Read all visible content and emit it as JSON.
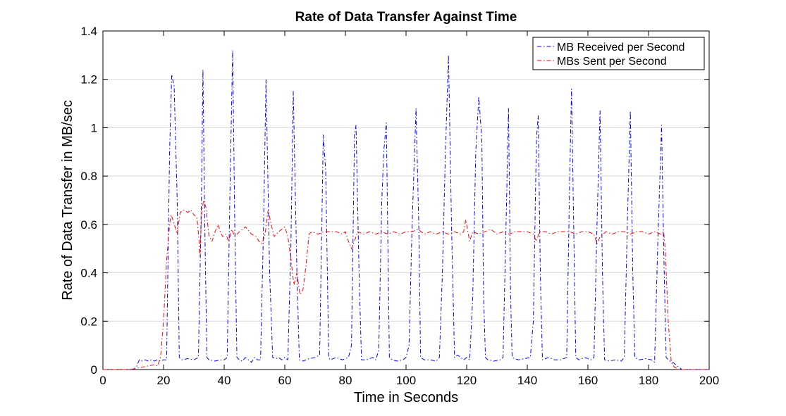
{
  "chart_data": {
    "type": "line",
    "title": "Rate of Data Transfer Against Time",
    "xlabel": "Time in Seconds",
    "ylabel": "Rate of Data Transfer in MB/sec",
    "xlim": [
      0,
      200
    ],
    "ylim": [
      0,
      1.4
    ],
    "xticks": [
      0,
      20,
      40,
      60,
      80,
      100,
      120,
      140,
      160,
      180,
      200
    ],
    "yticks": [
      0,
      0.2,
      0.4,
      0.6,
      0.8,
      1,
      1.2,
      1.4
    ],
    "grid": "horizontal",
    "legend_position": "top-right",
    "series": [
      {
        "name": "MB Received per Second",
        "color": "#0000ff",
        "line_style": "dash-dot",
        "points": [
          [
            0,
            0
          ],
          [
            10,
            0
          ],
          [
            11,
            0.01
          ],
          [
            12,
            0.04
          ],
          [
            13,
            0.035
          ],
          [
            14,
            0.04
          ],
          [
            15,
            0.035
          ],
          [
            16,
            0.04
          ],
          [
            17,
            0.035
          ],
          [
            18,
            0.04
          ],
          [
            19,
            0.035
          ],
          [
            20,
            0.04
          ],
          [
            21,
            0.04
          ],
          [
            22,
            0.9
          ],
          [
            22.7,
            1.22
          ],
          [
            23.5,
            1.17
          ],
          [
            24.5,
            0.7
          ],
          [
            25.2,
            0.05
          ],
          [
            26,
            0.04
          ],
          [
            28,
            0.045
          ],
          [
            30,
            0.04
          ],
          [
            31.5,
            0.05
          ],
          [
            32.5,
            0.7
          ],
          [
            33,
            1.24
          ],
          [
            33.6,
            0.6
          ],
          [
            34.3,
            0.05
          ],
          [
            35,
            0.04
          ],
          [
            37,
            0.035
          ],
          [
            39,
            0.04
          ],
          [
            40,
            0.04
          ],
          [
            41,
            0.05
          ],
          [
            42,
            0.8
          ],
          [
            42.8,
            1.32
          ],
          [
            43.5,
            0.6
          ],
          [
            44.2,
            0.05
          ],
          [
            45,
            0.04
          ],
          [
            46,
            0.035
          ],
          [
            47,
            0.05
          ],
          [
            48,
            0.04
          ],
          [
            49,
            0.03
          ],
          [
            50,
            0.05
          ],
          [
            51,
            0.04
          ],
          [
            52,
            0.04
          ],
          [
            53,
            0.6
          ],
          [
            53.8,
            1.2
          ],
          [
            55,
            0.4
          ],
          [
            56,
            0.05
          ],
          [
            57,
            0.045
          ],
          [
            58,
            0.05
          ],
          [
            59,
            0.04
          ],
          [
            60,
            0.05
          ],
          [
            61,
            0.04
          ],
          [
            62,
            0.5
          ],
          [
            62.8,
            1.15
          ],
          [
            64,
            0.4
          ],
          [
            64.8,
            0.04
          ],
          [
            66,
            0.035
          ],
          [
            68,
            0.045
          ],
          [
            70,
            0.05
          ],
          [
            71.5,
            0.06
          ],
          [
            72.7,
            0.97
          ],
          [
            73.5,
            0.82
          ],
          [
            74.5,
            0.05
          ],
          [
            75,
            0.04
          ],
          [
            77,
            0.05
          ],
          [
            79,
            0.04
          ],
          [
            81,
            0.05
          ],
          [
            82,
            0.1
          ],
          [
            83,
            0.97
          ],
          [
            83.5,
            1.01
          ],
          [
            84.5,
            0.4
          ],
          [
            85.3,
            0.04
          ],
          [
            87,
            0.04
          ],
          [
            89,
            0.05
          ],
          [
            90,
            0.04
          ],
          [
            91,
            0.08
          ],
          [
            92,
            0.7
          ],
          [
            92.7,
            0.91
          ],
          [
            93.5,
            1.02
          ],
          [
            94.5,
            0.05
          ],
          [
            95.5,
            0.04
          ],
          [
            97,
            0.035
          ],
          [
            99,
            0.04
          ],
          [
            100,
            0.05
          ],
          [
            101,
            0.1
          ],
          [
            102,
            0.6
          ],
          [
            103.3,
            1.08
          ],
          [
            104.2,
            0.6
          ],
          [
            104.8,
            0.05
          ],
          [
            106,
            0.04
          ],
          [
            108,
            0.04
          ],
          [
            110,
            0.035
          ],
          [
            111,
            0.05
          ],
          [
            112,
            0.4
          ],
          [
            113,
            0.9
          ],
          [
            114,
            1.3
          ],
          [
            115,
            0.6
          ],
          [
            116,
            0.05
          ],
          [
            117,
            0.06
          ],
          [
            118,
            0.05
          ],
          [
            119,
            0.04
          ],
          [
            120,
            0.05
          ],
          [
            121,
            0.04
          ],
          [
            122,
            0.3
          ],
          [
            123,
            0.9
          ],
          [
            124,
            1.13
          ],
          [
            125,
            0.95
          ],
          [
            125.6,
            0.3
          ],
          [
            126.2,
            0.05
          ],
          [
            127,
            0.04
          ],
          [
            129,
            0.035
          ],
          [
            131,
            0.04
          ],
          [
            132,
            0.05
          ],
          [
            133,
            0.6
          ],
          [
            133.8,
            1.08
          ],
          [
            134.5,
            0.3
          ],
          [
            135,
            0.05
          ],
          [
            137,
            0.04
          ],
          [
            139,
            0.045
          ],
          [
            141,
            0.05
          ],
          [
            142,
            0.2
          ],
          [
            143,
            0.95
          ],
          [
            143.6,
            1.05
          ],
          [
            144.3,
            0.4
          ],
          [
            145,
            0.04
          ],
          [
            147,
            0.05
          ],
          [
            149,
            0.04
          ],
          [
            151,
            0.04
          ],
          [
            153,
            0.05
          ],
          [
            154,
            0.8
          ],
          [
            154.6,
            1.16
          ],
          [
            155.3,
            0.6
          ],
          [
            156,
            0.05
          ],
          [
            157,
            0.04
          ],
          [
            159,
            0.05
          ],
          [
            161,
            0.04
          ],
          [
            162,
            0.05
          ],
          [
            163,
            0.6
          ],
          [
            164,
            1.07
          ],
          [
            164.8,
            0.4
          ],
          [
            165.5,
            0.04
          ],
          [
            167,
            0.035
          ],
          [
            169,
            0.04
          ],
          [
            171,
            0.035
          ],
          [
            172,
            0.05
          ],
          [
            173,
            0.6
          ],
          [
            174,
            1.07
          ],
          [
            174.8,
            0.4
          ],
          [
            175.5,
            0.05
          ],
          [
            177,
            0.04
          ],
          [
            179,
            0.045
          ],
          [
            181,
            0.04
          ],
          [
            182,
            0.03
          ],
          [
            183,
            0.5
          ],
          [
            184.3,
            1.01
          ],
          [
            185,
            0.5
          ],
          [
            185.8,
            0.05
          ],
          [
            187,
            0.035
          ],
          [
            188,
            0.03
          ],
          [
            189,
            0.02
          ],
          [
            190,
            0.01
          ],
          [
            191,
            0
          ],
          [
            200,
            0
          ]
        ]
      },
      {
        "name": "MBs Sent per Second",
        "color": "#ff0000",
        "line_style": "dash-dot",
        "points": [
          [
            0,
            0
          ],
          [
            9,
            0
          ],
          [
            11,
            0.005
          ],
          [
            13,
            0.01
          ],
          [
            15,
            0.015
          ],
          [
            17,
            0.02
          ],
          [
            18,
            0.015
          ],
          [
            19,
            0.05
          ],
          [
            20,
            0.2
          ],
          [
            21,
            0.45
          ],
          [
            22,
            0.6
          ],
          [
            22.5,
            0.64
          ],
          [
            23.3,
            0.61
          ],
          [
            24.5,
            0.56
          ],
          [
            25.5,
            0.65
          ],
          [
            26.5,
            0.66
          ],
          [
            28,
            0.65
          ],
          [
            29,
            0.66
          ],
          [
            30,
            0.64
          ],
          [
            31,
            0.63
          ],
          [
            31.6,
            0.55
          ],
          [
            32,
            0.47
          ],
          [
            32.6,
            0.65
          ],
          [
            33.2,
            0.7
          ],
          [
            34,
            0.67
          ],
          [
            35,
            0.55
          ],
          [
            36,
            0.53
          ],
          [
            37,
            0.57
          ],
          [
            38,
            0.6
          ],
          [
            38.7,
            0.57
          ],
          [
            39.5,
            0.55
          ],
          [
            40.5,
            0.56
          ],
          [
            41.5,
            0.53
          ],
          [
            42.5,
            0.58
          ],
          [
            43.5,
            0.55
          ],
          [
            45,
            0.57
          ],
          [
            47,
            0.59
          ],
          [
            49,
            0.56
          ],
          [
            50.5,
            0.55
          ],
          [
            51.5,
            0.53
          ],
          [
            52.5,
            0.52
          ],
          [
            53.5,
            0.56
          ],
          [
            54.5,
            0.66
          ],
          [
            55.5,
            0.6
          ],
          [
            56.5,
            0.55
          ],
          [
            58,
            0.57
          ],
          [
            59,
            0.58
          ],
          [
            60,
            0.59
          ],
          [
            61,
            0.55
          ],
          [
            62,
            0.46
          ],
          [
            63,
            0.35
          ],
          [
            64,
            0.4
          ],
          [
            65,
            0.31
          ],
          [
            66,
            0.33
          ],
          [
            67,
            0.43
          ],
          [
            68,
            0.56
          ],
          [
            69,
            0.57
          ],
          [
            71,
            0.56
          ],
          [
            73,
            0.57
          ],
          [
            75,
            0.57
          ],
          [
            77,
            0.57
          ],
          [
            79,
            0.56
          ],
          [
            80,
            0.57
          ],
          [
            81,
            0.53
          ],
          [
            82,
            0.5
          ],
          [
            83,
            0.53
          ],
          [
            84,
            0.57
          ],
          [
            86,
            0.56
          ],
          [
            88,
            0.57
          ],
          [
            90,
            0.56
          ],
          [
            92,
            0.57
          ],
          [
            94,
            0.56
          ],
          [
            96,
            0.57
          ],
          [
            98,
            0.56
          ],
          [
            100,
            0.57
          ],
          [
            102,
            0.57
          ],
          [
            104,
            0.58
          ],
          [
            106,
            0.56
          ],
          [
            108,
            0.57
          ],
          [
            110,
            0.56
          ],
          [
            112,
            0.57
          ],
          [
            114,
            0.56
          ],
          [
            116,
            0.57
          ],
          [
            118,
            0.56
          ],
          [
            119,
            0.57
          ],
          [
            119.7,
            0.62
          ],
          [
            120.4,
            0.57
          ],
          [
            121,
            0.53
          ],
          [
            122,
            0.57
          ],
          [
            124,
            0.56
          ],
          [
            126,
            0.57
          ],
          [
            128,
            0.58
          ],
          [
            130,
            0.56
          ],
          [
            132,
            0.57
          ],
          [
            134,
            0.56
          ],
          [
            136,
            0.57
          ],
          [
            138,
            0.57
          ],
          [
            140,
            0.57
          ],
          [
            142,
            0.56
          ],
          [
            143,
            0.53
          ],
          [
            144,
            0.57
          ],
          [
            146,
            0.57
          ],
          [
            148,
            0.56
          ],
          [
            150,
            0.57
          ],
          [
            152,
            0.57
          ],
          [
            154,
            0.57
          ],
          [
            156,
            0.56
          ],
          [
            158,
            0.57
          ],
          [
            160,
            0.57
          ],
          [
            162,
            0.56
          ],
          [
            163,
            0.52
          ],
          [
            164,
            0.55
          ],
          [
            166,
            0.57
          ],
          [
            168,
            0.56
          ],
          [
            170,
            0.57
          ],
          [
            172,
            0.57
          ],
          [
            174,
            0.56
          ],
          [
            176,
            0.57
          ],
          [
            178,
            0.57
          ],
          [
            180,
            0.56
          ],
          [
            182,
            0.57
          ],
          [
            184,
            0.56
          ],
          [
            185,
            0.57
          ],
          [
            185.5,
            0.5
          ],
          [
            186.5,
            0.2
          ],
          [
            187.5,
            0.03
          ],
          [
            188.5,
            0.01
          ],
          [
            190,
            0
          ],
          [
            200,
            0
          ]
        ]
      }
    ]
  }
}
